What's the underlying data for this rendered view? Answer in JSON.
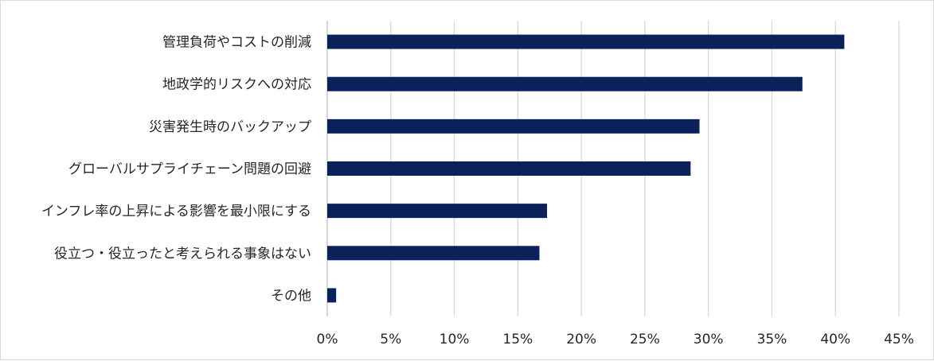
{
  "chart_data": {
    "type": "bar",
    "orientation": "horizontal",
    "title": "",
    "xlabel": "",
    "ylabel": "",
    "categories": [
      "管理負荷やコストの削減",
      "地政学的リスクへの対応",
      "災害発生時のバックアップ",
      "グローバルサプライチェーン問題の回避",
      "インフレ率の上昇による影響を最小限にする",
      "役立つ・役立ったと考えられる事象はない",
      "その他"
    ],
    "values": [
      40.7,
      37.4,
      29.3,
      28.6,
      17.3,
      16.7,
      0.7
    ],
    "xlim": [
      0,
      45
    ],
    "xticks": [
      "0%",
      "5%",
      "10%",
      "15%",
      "20%",
      "25%",
      "30%",
      "35%",
      "40%",
      "45%"
    ],
    "grid": true,
    "bar_color": "#0b2159",
    "legend": "none"
  }
}
